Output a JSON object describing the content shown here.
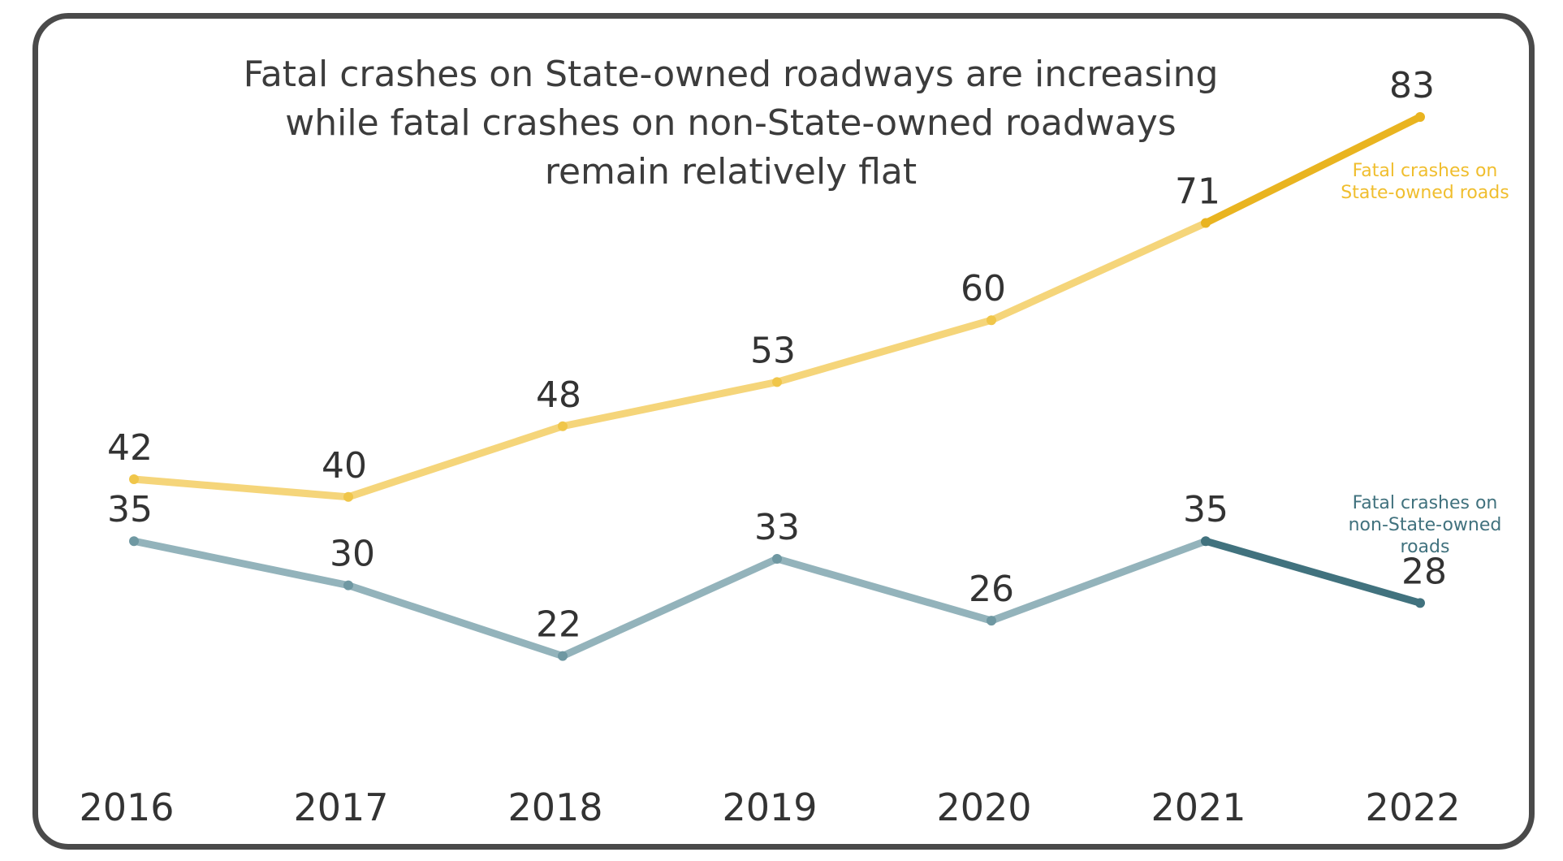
{
  "chart_data": {
    "type": "line",
    "title": "Fatal crashes on State-owned roadways are increasing\nwhile fatal crashes on non-State-owned roadways\nremain relatively flat",
    "categories": [
      "2016",
      "2017",
      "2018",
      "2019",
      "2020",
      "2021",
      "2022"
    ],
    "series": [
      {
        "name": "Fatal crashes on State-owned roads",
        "name_lines": [
          "Fatal crashes on",
          "State-owned roads"
        ],
        "values": [
          42,
          40,
          48,
          53,
          60,
          71,
          83
        ],
        "color": "#f5d57a",
        "highlight_color": "#e9b420",
        "label_color": "#f0be2e"
      },
      {
        "name": "Fatal crashes on non-State-owned roads",
        "name_lines": [
          "Fatal crashes on",
          "non-State-owned",
          "roads"
        ],
        "values": [
          35,
          30,
          22,
          33,
          26,
          35,
          28
        ],
        "color": "#93b3bb",
        "highlight_color": "#41727e",
        "label_color": "#41727e"
      }
    ],
    "grid": false,
    "legend": "right, inline labels"
  }
}
